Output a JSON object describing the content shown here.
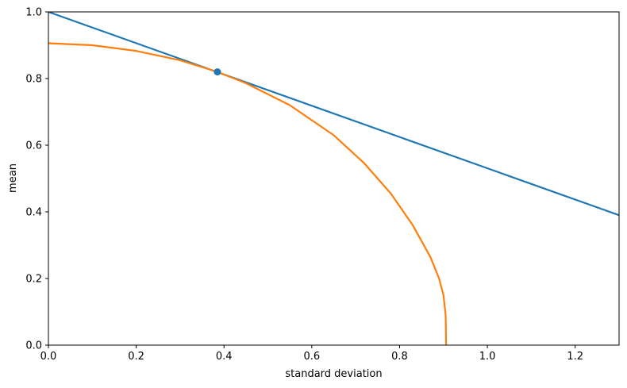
{
  "chart_data": {
    "type": "line",
    "title": "",
    "xlabel": "standard deviation",
    "ylabel": "mean",
    "xlim": [
      0.0,
      1.3
    ],
    "ylim": [
      0.0,
      1.0
    ],
    "grid": false,
    "x_ticks": [
      0.0,
      0.2,
      0.4,
      0.6,
      0.8,
      1.0,
      1.2
    ],
    "x_tick_labels": [
      "0.0",
      "0.2",
      "0.4",
      "0.6",
      "0.8",
      "1.0",
      "1.2"
    ],
    "y_ticks": [
      0.0,
      0.2,
      0.4,
      0.6,
      0.8,
      1.0
    ],
    "y_tick_labels": [
      "0.0",
      "0.2",
      "0.4",
      "0.6",
      "0.8",
      "1.0"
    ],
    "series": [
      {
        "color": "#1f77b4",
        "x": [
          0.0,
          1.3
        ],
        "y": [
          1.0,
          0.39
        ]
      },
      {
        "color": "#ff7f0e",
        "x": [
          0.0,
          0.1,
          0.2,
          0.3,
          0.385,
          0.45,
          0.55,
          0.65,
          0.72,
          0.78,
          0.83,
          0.87,
          0.89,
          0.9,
          0.905,
          0.906
        ],
        "y": [
          0.906,
          0.9,
          0.883,
          0.855,
          0.82,
          0.786,
          0.72,
          0.63,
          0.545,
          0.455,
          0.36,
          0.265,
          0.2,
          0.15,
          0.09,
          0.0
        ]
      }
    ],
    "points": [
      {
        "x": 0.385,
        "y": 0.82,
        "color": "#1f77b4"
      }
    ]
  }
}
